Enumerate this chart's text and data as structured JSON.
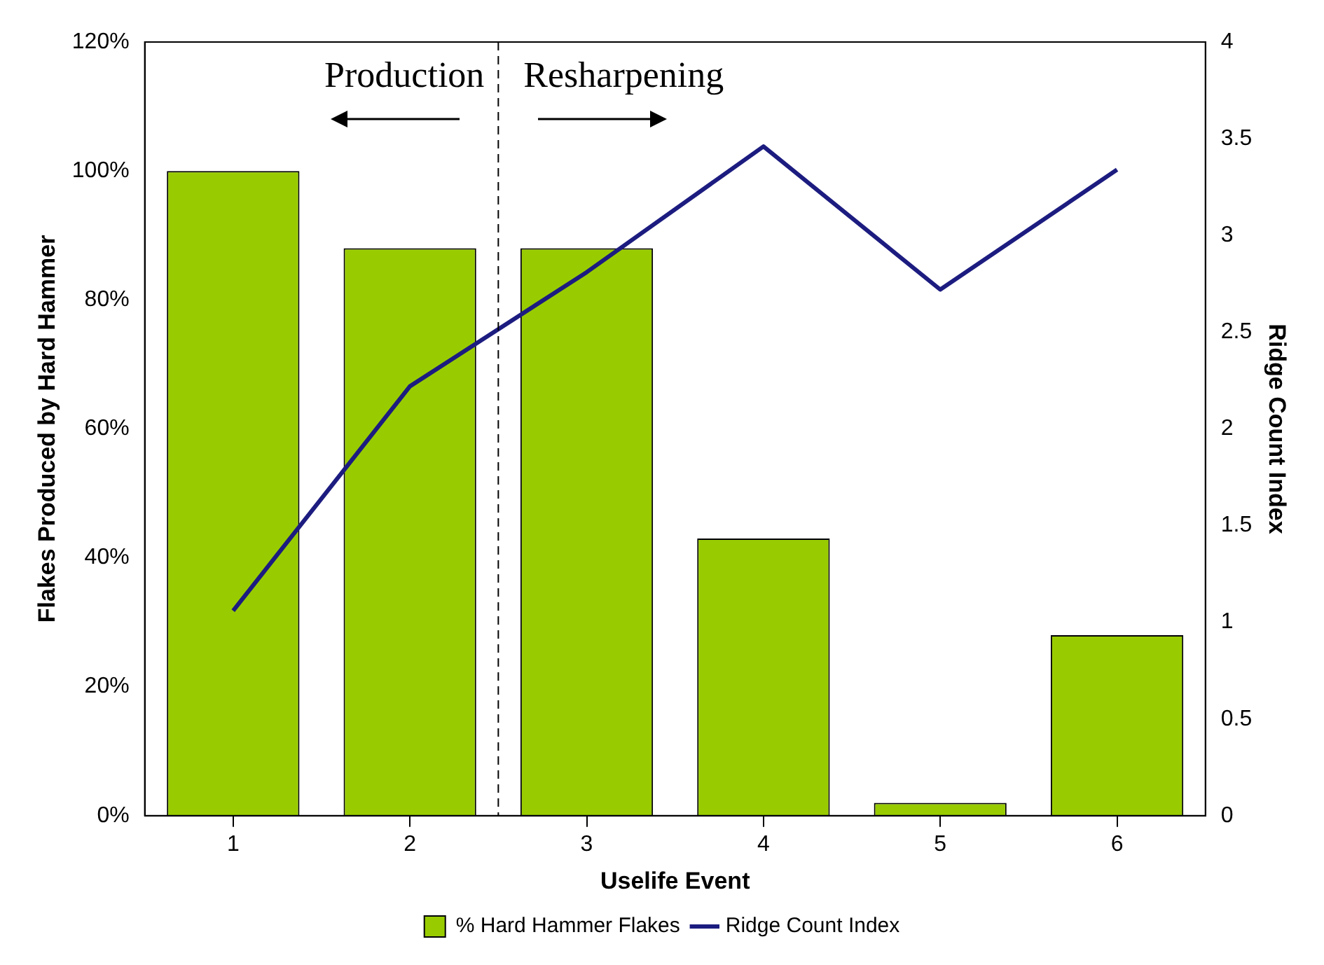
{
  "chart_data": {
    "type": "bar",
    "xlabel": "Uselife Event",
    "ylabel": "Flakes Produced by Hard Hammer",
    "y2label": "Ridge Count Index",
    "x": [
      1,
      2,
      3,
      4,
      5,
      6
    ],
    "xlim": [
      0.5,
      6.5
    ],
    "xticks": [
      1,
      2,
      3,
      4,
      5,
      6
    ],
    "series": [
      {
        "name": "% Hard Hammer Flakes",
        "color": "#99cc00",
        "values": [
          100,
          88,
          88,
          43,
          2,
          28
        ]
      },
      {
        "name": "Ridge Count Index",
        "type": "line",
        "axis": "y2",
        "color": "#1c1c80",
        "values": [
          1.06,
          2.22,
          2.81,
          3.46,
          2.72,
          3.34
        ]
      }
    ],
    "ylim": [
      0,
      120
    ],
    "yticks": [
      {
        "value": 0,
        "label": "0%"
      },
      {
        "value": 20,
        "label": "20%"
      },
      {
        "value": 40,
        "label": "40%"
      },
      {
        "value": 60,
        "label": "60%"
      },
      {
        "value": 80,
        "label": "80%"
      },
      {
        "value": 100,
        "label": "100%"
      },
      {
        "value": 120,
        "label": "120%"
      }
    ],
    "y2lim": [
      0,
      4
    ],
    "y2ticks": [
      0,
      0.5,
      1,
      1.5,
      2,
      2.5,
      3,
      3.5,
      4
    ],
    "ref_lines": [
      {
        "axis": "x",
        "value": 2.5,
        "line_style": "dashed",
        "color": "#000000"
      }
    ],
    "annotations": [
      "Production",
      "Resharpening"
    ],
    "grid": false,
    "legend": "bottom",
    "marker": "none",
    "line_style": "solid"
  }
}
